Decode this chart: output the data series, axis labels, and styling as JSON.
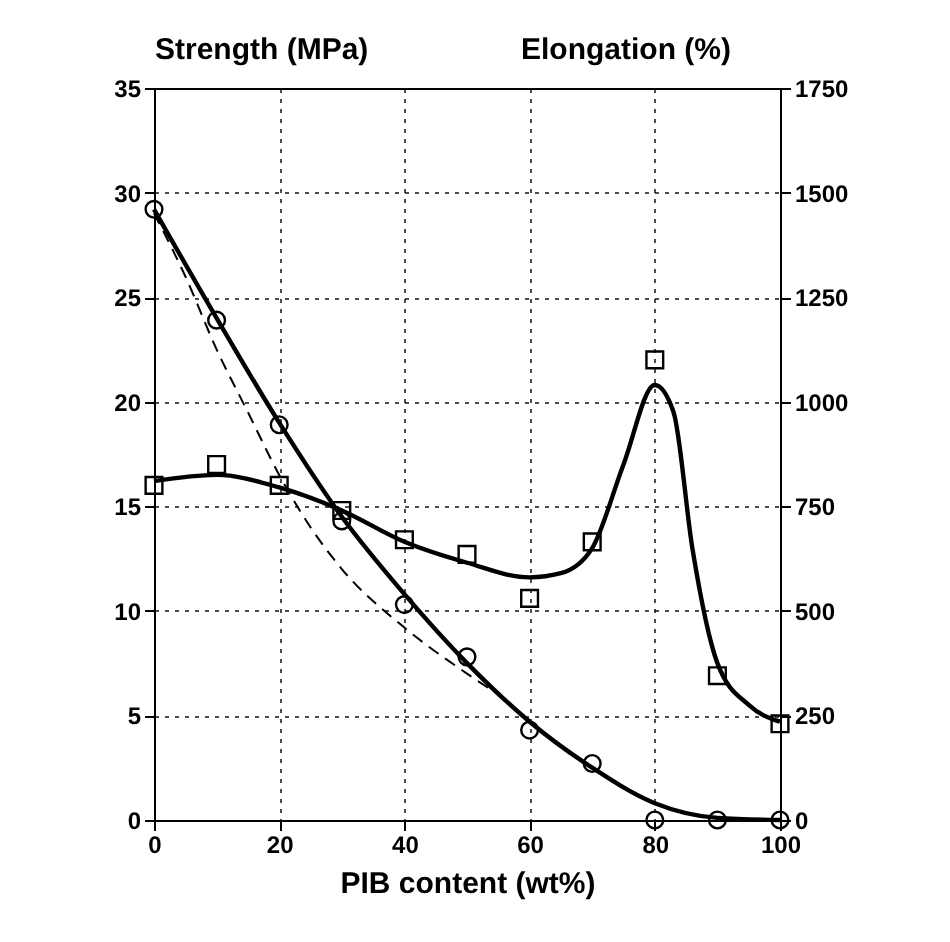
{
  "chart_data": {
    "type": "scatter",
    "xlabel": "PIB content (wt%)",
    "ylabel": "Strength (MPa)",
    "y2label": "Elongation (%)",
    "xlim": [
      0,
      100
    ],
    "xticks": [
      0,
      20,
      40,
      60,
      80,
      100
    ],
    "ylim": [
      0,
      35
    ],
    "yticks": [
      0,
      5,
      10,
      15,
      20,
      25,
      30,
      35
    ],
    "y2lim": [
      0,
      1750
    ],
    "y2ticks": [
      0,
      250,
      500,
      750,
      1000,
      1250,
      1500,
      1750
    ],
    "grid": true,
    "series": [
      {
        "type": "line",
        "marker": "none",
        "line_style": "solid",
        "color": "#000000",
        "x": [
          0,
          10,
          20,
          30,
          40,
          50,
          60,
          70,
          80,
          90,
          100
        ],
        "values": [
          29.2,
          24,
          19,
          14.5,
          10.8,
          7.5,
          4.7,
          2.5,
          0.8,
          0.1,
          0
        ]
      },
      {
        "type": "line",
        "marker": "none",
        "line_style": "dashed",
        "color": "#000000",
        "x": [
          0,
          5,
          10,
          15,
          20,
          25,
          30,
          40,
          50,
          55
        ],
        "values": [
          29,
          26,
          22.5,
          19.5,
          16.5,
          14,
          12,
          9.2,
          7,
          6
        ]
      },
      {
        "type": "scatter",
        "marker": "square",
        "axis": "y2",
        "color": "#000000",
        "x": [
          0,
          10,
          20,
          30,
          40,
          50,
          60,
          70,
          80,
          90,
          100
        ],
        "values": [
          800,
          850,
          800,
          740,
          670,
          635,
          530,
          665,
          1100,
          345,
          230
        ]
      },
      {
        "type": "line",
        "marker": "none",
        "line_style": "solid",
        "axis": "y2",
        "color": "#000000",
        "x": [
          0,
          10,
          20,
          30,
          40,
          50,
          60,
          65,
          70,
          75,
          80,
          83,
          86,
          90,
          95,
          100
        ],
        "values": [
          810,
          825,
          795,
          740,
          665,
          615,
          580,
          590,
          650,
          850,
          1040,
          975,
          650,
          375,
          275,
          235
        ]
      },
      {
        "type": "scatter",
        "marker": "circle",
        "color": "#000000",
        "x": [
          0,
          10,
          20,
          30,
          40,
          50,
          60,
          70,
          80,
          90,
          100
        ],
        "values": [
          29.2,
          23.9,
          18.9,
          14.3,
          10.3,
          7.8,
          4.3,
          2.7,
          0,
          0,
          0
        ]
      }
    ]
  }
}
